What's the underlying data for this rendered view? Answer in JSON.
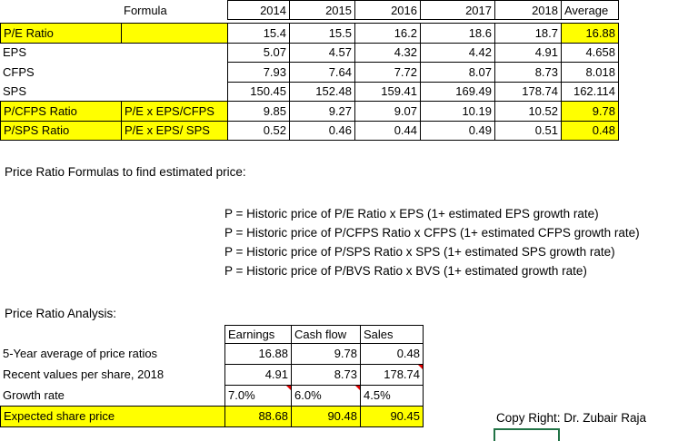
{
  "top_table": {
    "columns": [
      "Formula",
      2014,
      2015,
      2016,
      2017,
      2018,
      "Average"
    ],
    "rows": [
      {
        "label": "P/E Ratio",
        "values": [
          15.4,
          15.5,
          16.2,
          18.6,
          18.7,
          16.88
        ]
      },
      {
        "label": "EPS",
        "values": [
          5.07,
          4.57,
          4.32,
          4.42,
          4.91,
          4.658
        ]
      },
      {
        "label": "CFPS",
        "values": [
          7.93,
          7.64,
          7.72,
          8.07,
          8.73,
          8.018
        ]
      },
      {
        "label": "SPS",
        "values": [
          150.45,
          152.48,
          159.41,
          169.49,
          178.74,
          162.114
        ]
      },
      {
        "label": "P/CFPS Ratio",
        "formula": "P/E x EPS/CFPS",
        "values": [
          9.85,
          9.27,
          9.07,
          10.19,
          10.52,
          9.78
        ]
      },
      {
        "label": "P/SPS Ratio",
        "formula": "P/E x EPS/ SPS",
        "values": [
          0.52,
          0.46,
          0.44,
          0.49,
          0.51,
          0.48
        ]
      }
    ]
  },
  "formulas_heading": "Price Ratio Formulas to find estimated price:",
  "formulas": [
    "P = Historic price of P/E Ratio x EPS (1+ estimated EPS growth rate)",
    "P = Historic price of P/CFPS Ratio x CFPS (1+ estimated CFPS growth rate)",
    "P = Historic price of P/SPS Ratio x SPS (1+ estimated SPS growth rate)",
    "P = Historic price of P/BVS Ratio x BVS (1+ estimated growth rate)"
  ],
  "analysis": {
    "heading": "Price Ratio Analysis:",
    "columns": [
      "Earnings",
      "Cash flow",
      "Sales"
    ],
    "rows": [
      {
        "label": "5-Year average of price ratios",
        "values": [
          16.88,
          9.78,
          0.48
        ]
      },
      {
        "label": "Recent values per share, 2018",
        "values": [
          4.91,
          8.73,
          178.74
        ]
      },
      {
        "label": "Growth rate",
        "values": [
          "7.0%",
          "6.0%",
          "4.5%"
        ]
      },
      {
        "label": "Expected share price",
        "values": [
          88.68,
          90.48,
          90.45
        ]
      }
    ]
  },
  "copyright": "Copy Right: Dr. Zubair Raja"
}
